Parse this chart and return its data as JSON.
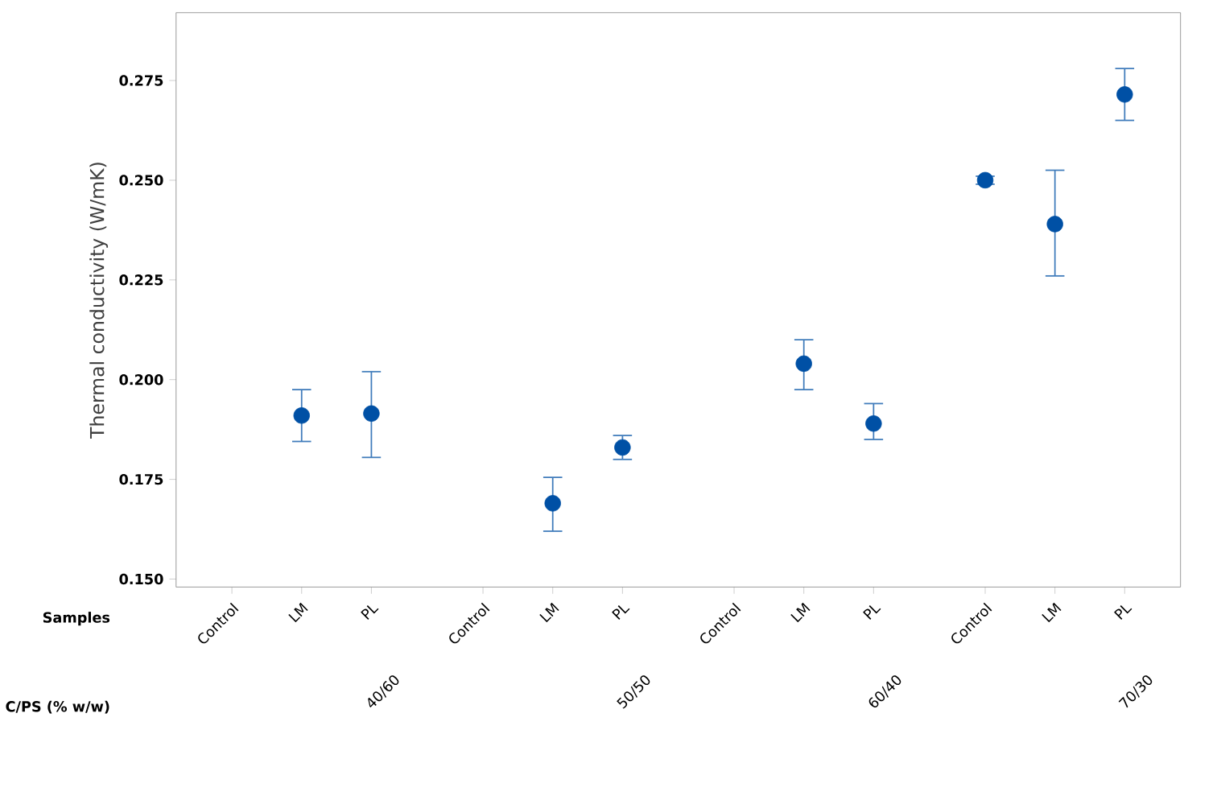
{
  "chart_data": {
    "type": "scatter",
    "ylabel": "Thermal conductivity (W/mK)",
    "categories": [
      "Control",
      "LM",
      "PL",
      "Control",
      "LM",
      "PL",
      "Control",
      "LM",
      "PL",
      "Control",
      "LM",
      "PL"
    ],
    "series": [
      {
        "color": "#0050a5",
        "values": [
          null,
          0.191,
          0.1915,
          null,
          0.169,
          0.183,
          null,
          0.204,
          0.189,
          0.25,
          0.239,
          0.2715
        ],
        "errors": [
          null,
          [
            0.1845,
            0.1975
          ],
          [
            0.1805,
            0.202
          ],
          null,
          [
            0.162,
            0.1755
          ],
          [
            0.18,
            0.186
          ],
          null,
          [
            0.1975,
            0.21
          ],
          [
            0.185,
            0.194
          ],
          [
            0.249,
            0.251
          ],
          [
            0.226,
            0.2525
          ],
          [
            0.265,
            0.278
          ]
        ]
      }
    ],
    "ylim": [
      0.148,
      0.292
    ],
    "yticks": [
      {
        "value": 0.15,
        "label": "0.150"
      },
      0.175,
      {
        "value": 0.2,
        "label": "0.200"
      },
      0.225,
      {
        "value": 0.25,
        "label": "0.250"
      },
      0.275
    ],
    "marker": "circle",
    "annotations": [
      "Samples",
      "C/PS (% w/w)",
      "40/60",
      "50/50",
      "60/40",
      "70/30"
    ]
  }
}
